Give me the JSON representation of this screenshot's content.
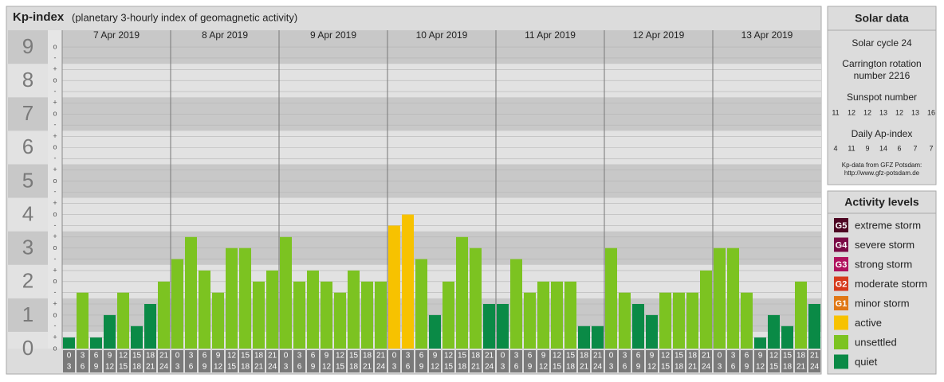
{
  "chart_data": {
    "type": "bar",
    "title": "Kp-index",
    "subtitle": "(planetary 3-hourly index of geomagnetic activity)",
    "ylim": [
      0,
      9.5
    ],
    "yticks": [
      0,
      1,
      2,
      3,
      4,
      5,
      6,
      7,
      8,
      9
    ],
    "minor_yticks": [
      {
        "value": 0,
        "label": "o"
      },
      {
        "value": 0.33,
        "label": "+"
      },
      {
        "value": 0.67,
        "label": "-"
      },
      {
        "value": 1,
        "label": "o"
      },
      {
        "value": 1.33,
        "label": "+"
      },
      {
        "value": 1.67,
        "label": "-"
      },
      {
        "value": 2,
        "label": "o"
      },
      {
        "value": 2.33,
        "label": "+"
      },
      {
        "value": 2.67,
        "label": "-"
      },
      {
        "value": 3,
        "label": "o"
      },
      {
        "value": 3.33,
        "label": "+"
      },
      {
        "value": 3.67,
        "label": "-"
      },
      {
        "value": 4,
        "label": "o"
      },
      {
        "value": 4.33,
        "label": "+"
      },
      {
        "value": 4.67,
        "label": "-"
      },
      {
        "value": 5,
        "label": "o"
      },
      {
        "value": 5.33,
        "label": "+"
      },
      {
        "value": 5.67,
        "label": "-"
      },
      {
        "value": 6,
        "label": "o"
      },
      {
        "value": 6.33,
        "label": "+"
      },
      {
        "value": 6.67,
        "label": "-"
      },
      {
        "value": 7,
        "label": "o"
      },
      {
        "value": 7.33,
        "label": "+"
      },
      {
        "value": 7.67,
        "label": "-"
      },
      {
        "value": 8,
        "label": "o"
      },
      {
        "value": 8.33,
        "label": "+"
      },
      {
        "value": 8.67,
        "label": "-"
      },
      {
        "value": 9,
        "label": "o"
      }
    ],
    "hour_labels": [
      [
        "0",
        "3"
      ],
      [
        "3",
        "6"
      ],
      [
        "6",
        "9"
      ],
      [
        "9",
        "12"
      ],
      [
        "12",
        "15"
      ],
      [
        "15",
        "18"
      ],
      [
        "18",
        "21"
      ],
      [
        "21",
        "24"
      ]
    ],
    "series": [
      {
        "name": "7 Apr 2019",
        "values": [
          0.33,
          1.67,
          0.33,
          1,
          1.67,
          0.67,
          1.33,
          2
        ],
        "colors": [
          "#0a8a46",
          "#7cc321",
          "#0a8a46",
          "#0a8a46",
          "#7cc321",
          "#0a8a46",
          "#0a8a46",
          "#7cc321"
        ]
      },
      {
        "name": "8 Apr 2019",
        "values": [
          2.67,
          3.33,
          2.33,
          1.67,
          3,
          3,
          2,
          2.33
        ],
        "colors": [
          "#7cc321",
          "#7cc321",
          "#7cc321",
          "#7cc321",
          "#7cc321",
          "#7cc321",
          "#7cc321",
          "#7cc321"
        ]
      },
      {
        "name": "9 Apr 2019",
        "values": [
          3.33,
          2,
          2.33,
          2,
          1.67,
          2.33,
          2,
          2
        ],
        "colors": [
          "#7cc321",
          "#7cc321",
          "#7cc321",
          "#7cc321",
          "#7cc321",
          "#7cc321",
          "#7cc321",
          "#7cc321"
        ]
      },
      {
        "name": "10 Apr 2019",
        "values": [
          3.67,
          4,
          2.67,
          1,
          2,
          3.33,
          3,
          1.33
        ],
        "colors": [
          "#f7c200",
          "#f7c200",
          "#7cc321",
          "#0a8a46",
          "#7cc321",
          "#7cc321",
          "#7cc321",
          "#0a8a46"
        ]
      },
      {
        "name": "11 Apr 2019",
        "values": [
          1.33,
          2.67,
          1.67,
          2,
          2,
          2,
          0.67,
          0.67
        ],
        "colors": [
          "#0a8a46",
          "#7cc321",
          "#7cc321",
          "#7cc321",
          "#7cc321",
          "#7cc321",
          "#0a8a46",
          "#0a8a46"
        ]
      },
      {
        "name": "12 Apr 2019",
        "values": [
          3,
          1.67,
          1.33,
          1,
          1.67,
          1.67,
          1.67,
          2.33
        ],
        "colors": [
          "#7cc321",
          "#7cc321",
          "#0a8a46",
          "#0a8a46",
          "#7cc321",
          "#7cc321",
          "#7cc321",
          "#7cc321"
        ]
      },
      {
        "name": "13 Apr 2019",
        "values": [
          3,
          3,
          1.67,
          0.33,
          1,
          0.67,
          2,
          1.33
        ],
        "colors": [
          "#7cc321",
          "#7cc321",
          "#7cc321",
          "#0a8a46",
          "#0a8a46",
          "#0a8a46",
          "#7cc321",
          "#0a8a46"
        ]
      }
    ]
  },
  "solar": {
    "title": "Solar data",
    "cycle": "Solar cycle 24",
    "carrington": [
      "Carrington rotation",
      "number 2216"
    ],
    "sunspot_title": "Sunspot number",
    "sunspot": [
      11,
      12,
      12,
      13,
      12,
      13,
      16
    ],
    "ap_title": "Daily Ap-index",
    "ap": [
      4,
      11,
      9,
      14,
      6,
      7,
      7
    ],
    "source": [
      "Kp-data from GFZ Potsdam:",
      "http://www.gfz-potsdam.de"
    ]
  },
  "legend": {
    "title": "Activity levels",
    "items": [
      {
        "code": "G5",
        "name": "extreme storm",
        "color": "#4d0522"
      },
      {
        "code": "G4",
        "name": "severe storm",
        "color": "#7a0a45"
      },
      {
        "code": "G3",
        "name": "strong storm",
        "color": "#b0125e"
      },
      {
        "code": "G2",
        "name": "moderate storm",
        "color": "#d63a1c"
      },
      {
        "code": "G1",
        "name": "minor storm",
        "color": "#e07816"
      },
      {
        "name": "active",
        "color": "#f7c200"
      },
      {
        "name": "unsettled",
        "color": "#7cc321"
      },
      {
        "name": "quiet",
        "color": "#0a8a46"
      }
    ]
  }
}
